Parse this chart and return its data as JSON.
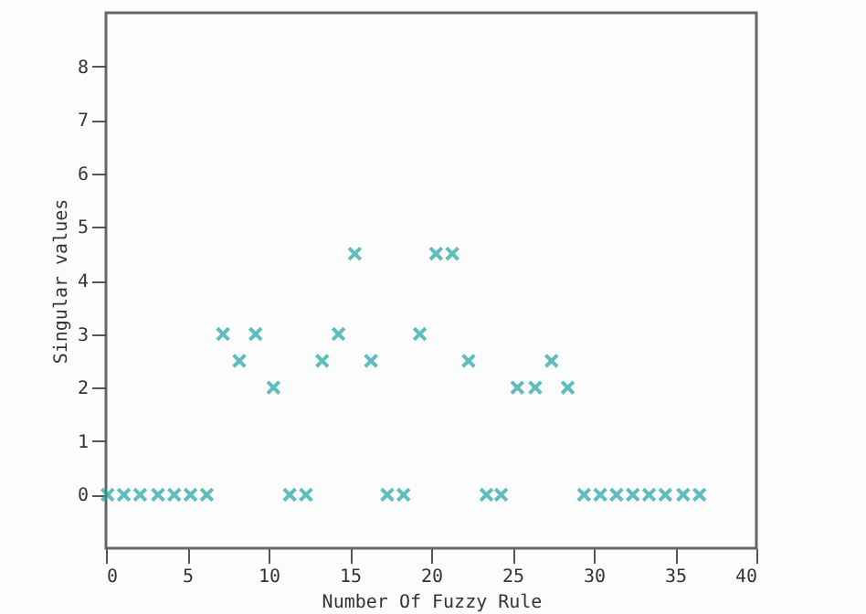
{
  "chart_data": {
    "type": "scatter",
    "xlabel": "Number Of Fuzzy Rule",
    "ylabel": "Singular values",
    "x": [
      0.1,
      1.1,
      2.1,
      3.2,
      4.2,
      5.2,
      6.2,
      7.2,
      8.2,
      9.2,
      10.3,
      11.3,
      12.3,
      13.3,
      14.3,
      15.3,
      16.3,
      17.3,
      18.3,
      19.3,
      20.3,
      21.3,
      22.3,
      23.4,
      24.3,
      25.3,
      26.4,
      27.4,
      28.4,
      29.4,
      30.4,
      31.4,
      32.4,
      33.4,
      34.4,
      35.5,
      36.5
    ],
    "values": [
      0,
      0,
      0,
      0,
      0,
      0,
      0,
      3,
      2.5,
      3,
      2,
      0,
      0,
      2.5,
      3,
      4.5,
      2.5,
      0,
      0,
      3,
      4.5,
      4.5,
      2.5,
      0,
      0,
      2,
      2,
      2.5,
      2,
      0,
      0,
      0,
      0,
      0,
      0,
      0,
      0
    ],
    "color": "#1fa3a3",
    "marker": "cross",
    "xlim": [
      0,
      40
    ],
    "ylim": [
      -1,
      9
    ],
    "xticks": [
      0,
      5,
      10,
      15,
      20,
      25,
      30,
      35,
      40
    ],
    "yticks": [
      0,
      1,
      2,
      3,
      4,
      5,
      6,
      7,
      8
    ],
    "grid": false,
    "legend": false
  }
}
